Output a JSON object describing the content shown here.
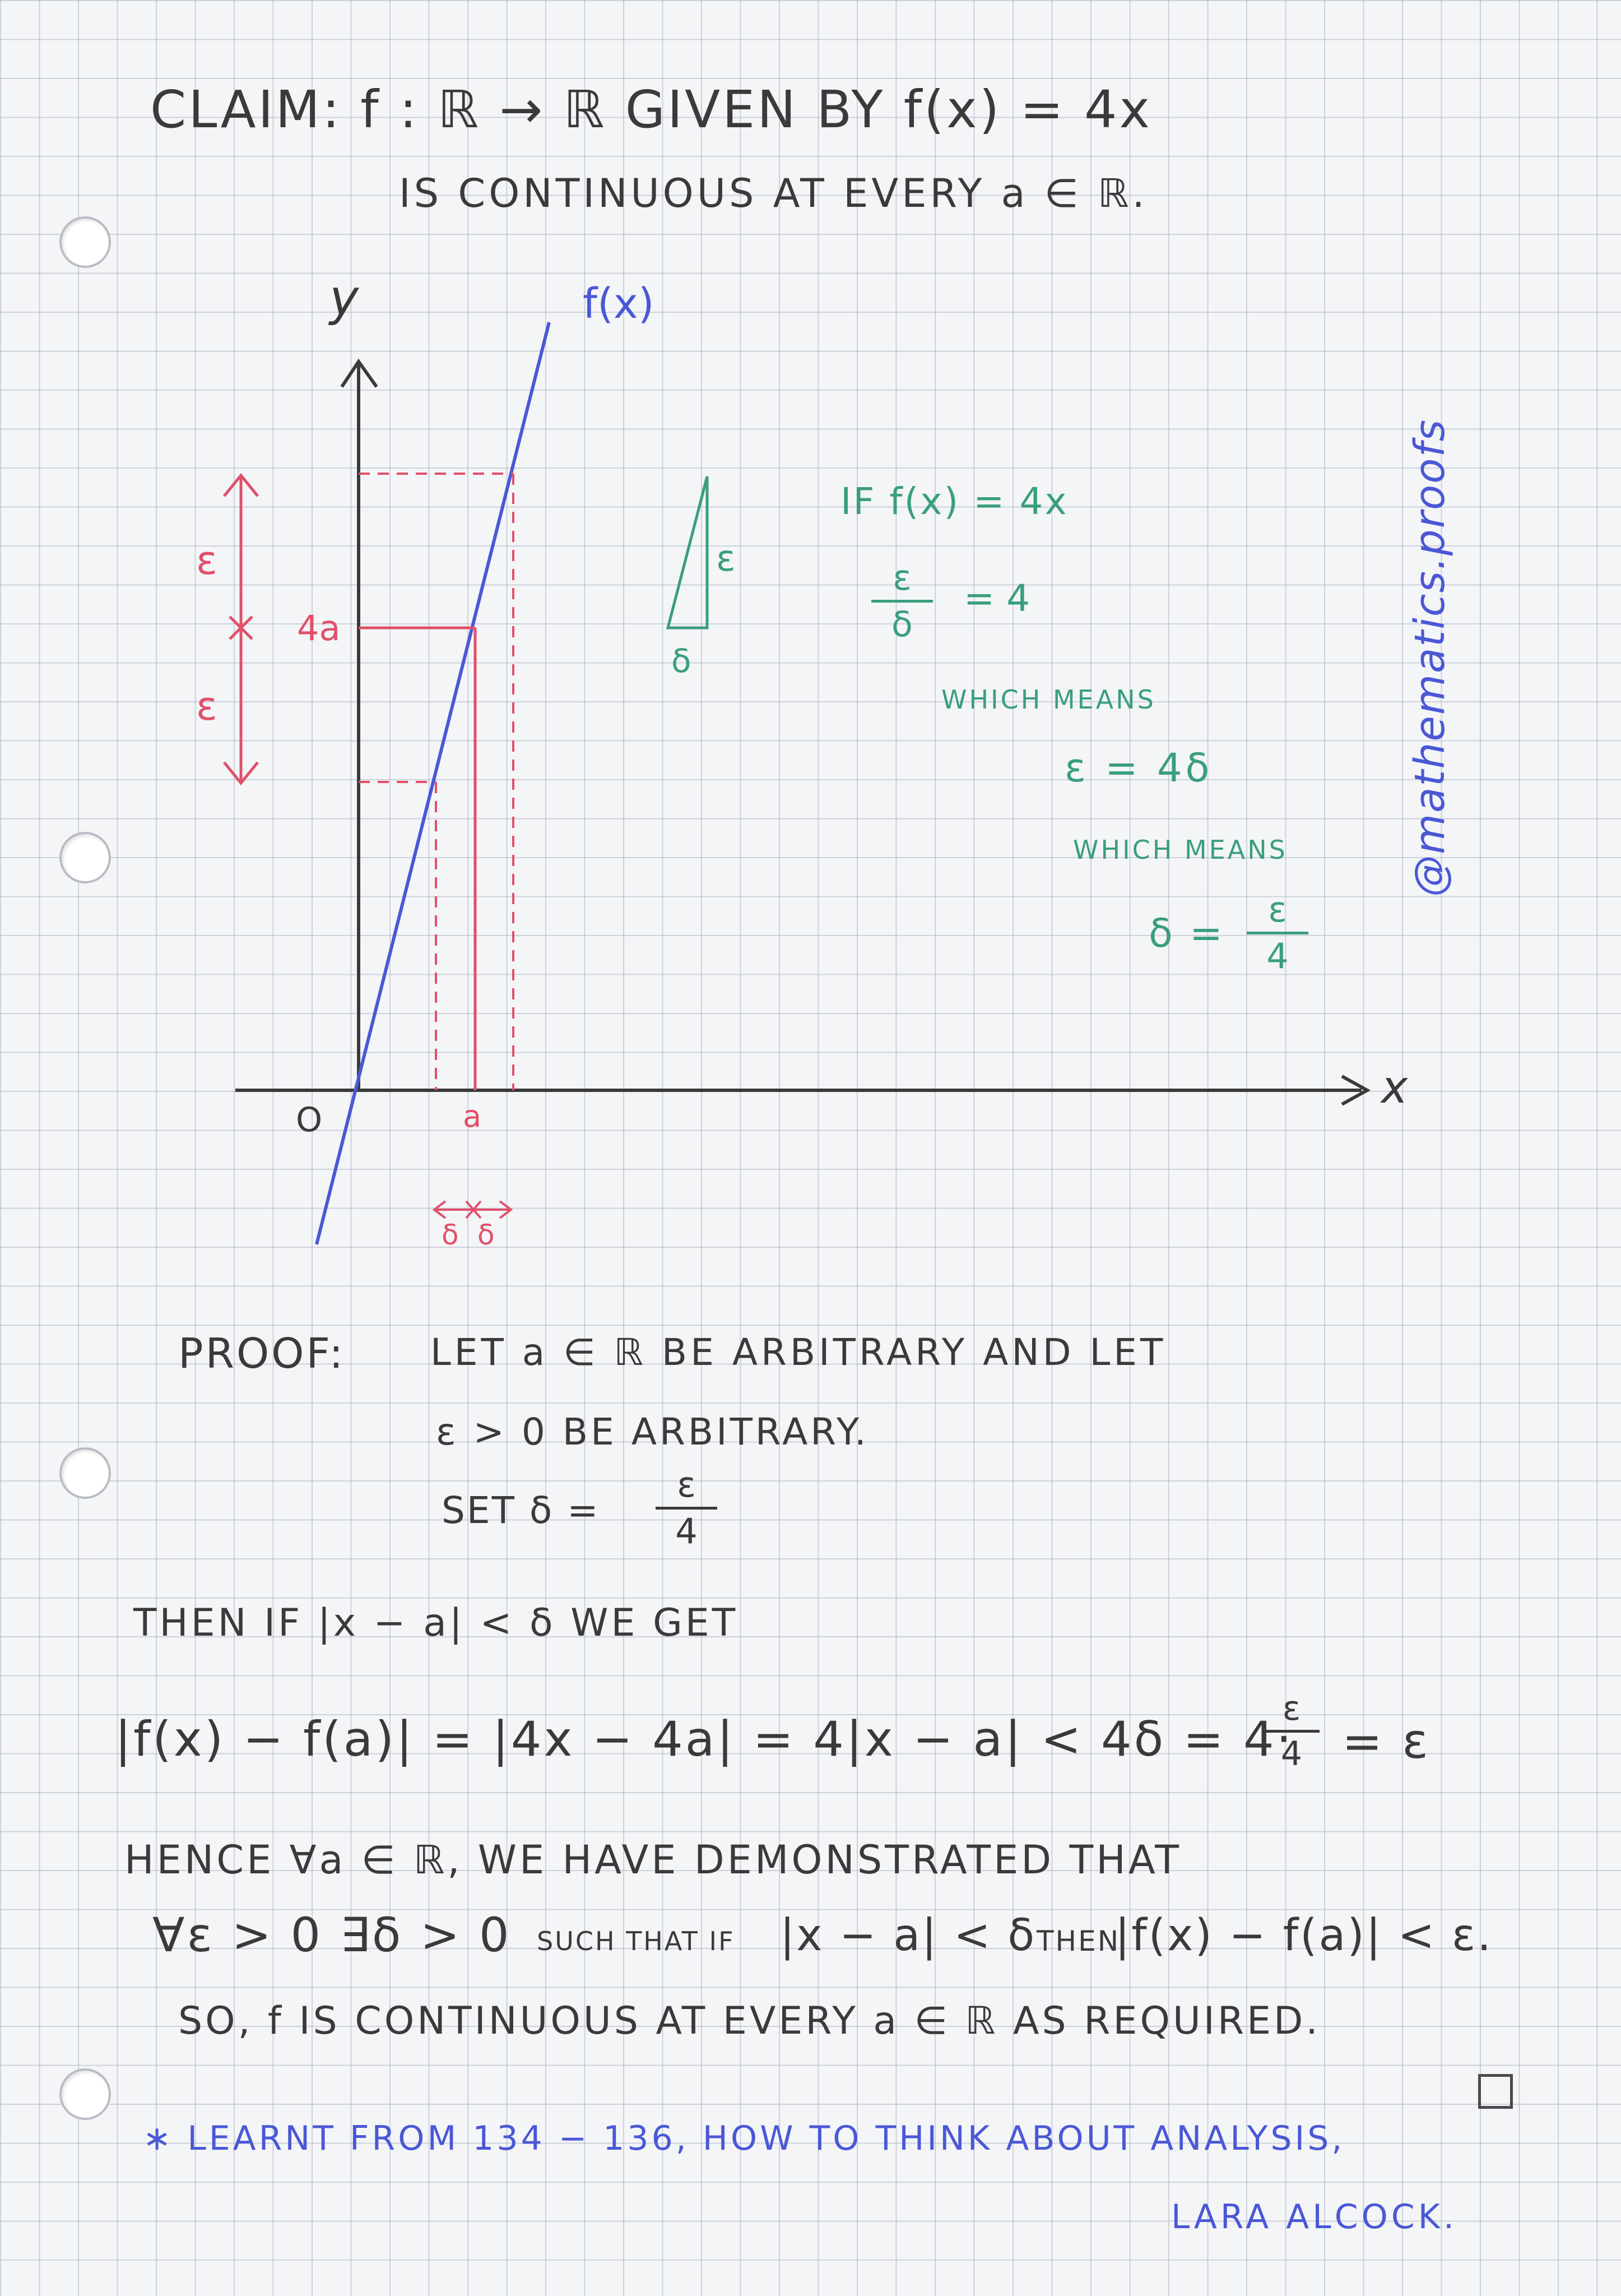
{
  "colors": {
    "ink": "#3a3a3a",
    "red": "#e0506a",
    "green": "#3a9e7e",
    "blue": "#4a58d6",
    "grid": "#969fb9"
  },
  "claim": {
    "line1": "CLAIM:  f : ℝ → ℝ  GIVEN  BY  f(x) = 4x",
    "line2": "IS  CONTINUOUS  AT  EVERY  a ∈ ℝ."
  },
  "graph": {
    "y_label": "y",
    "x_label": "x",
    "origin_label": "O",
    "curve_label": "f(x)",
    "y_value_label": "4a",
    "x_value_label": "a",
    "epsilon_upper": "ε",
    "epsilon_lower": "ε",
    "delta_left": "δ",
    "delta_right": "δ"
  },
  "triangle": {
    "side_vertical": "ε",
    "side_horizontal": "δ"
  },
  "reasoning": {
    "line1": "IF  f(x) = 4x",
    "frac1_num": "ε",
    "frac1_den": "δ",
    "frac1_rhs": "= 4",
    "which_means_1": "WHICH  MEANS",
    "eq2": "ε = 4δ",
    "which_means_2": "WHICH  MEANS",
    "eq3_lhs": "δ =",
    "frac3_num": "ε",
    "frac3_den": "4"
  },
  "watermark": "@mathematics.proofs",
  "proof": {
    "label": "PROOF:",
    "line1": "LET  a ∈ ℝ  BE  ARBITRARY  AND  LET",
    "line2": "ε > 0   BE   ARBITRARY.",
    "set_lhs": "SET   δ =",
    "set_num": "ε",
    "set_den": "4",
    "then_line": "THEN  IF  |x − a| < δ   WE  GET",
    "chain": "|f(x) − f(a)| = |4x − 4a| = 4|x − a| < 4δ = 4·",
    "chain_num": "ε",
    "chain_den": "4",
    "chain_end": "= ε",
    "hence_line": "HENCE  ∀a ∈ ℝ,  WE  HAVE  DEMONSTRATED  THAT",
    "quant_big": "∀ε > 0 ∃δ > 0",
    "quant_small": "SUCH THAT IF",
    "quant_mid": "|x − a| < δ",
    "quant_then": "THEN",
    "quant_end": "|f(x) − f(a)| < ε.",
    "so_line": "SO,  f  IS  CONTINUOUS  AT  EVERY  a ∈ ℝ  AS  REQUIRED."
  },
  "footer": {
    "line1": "∗ LEARNT   FROM  134 − 136,  HOW  TO  THINK  ABOUT  ANALYSIS,",
    "line2": "LARA   ALCOCK."
  }
}
